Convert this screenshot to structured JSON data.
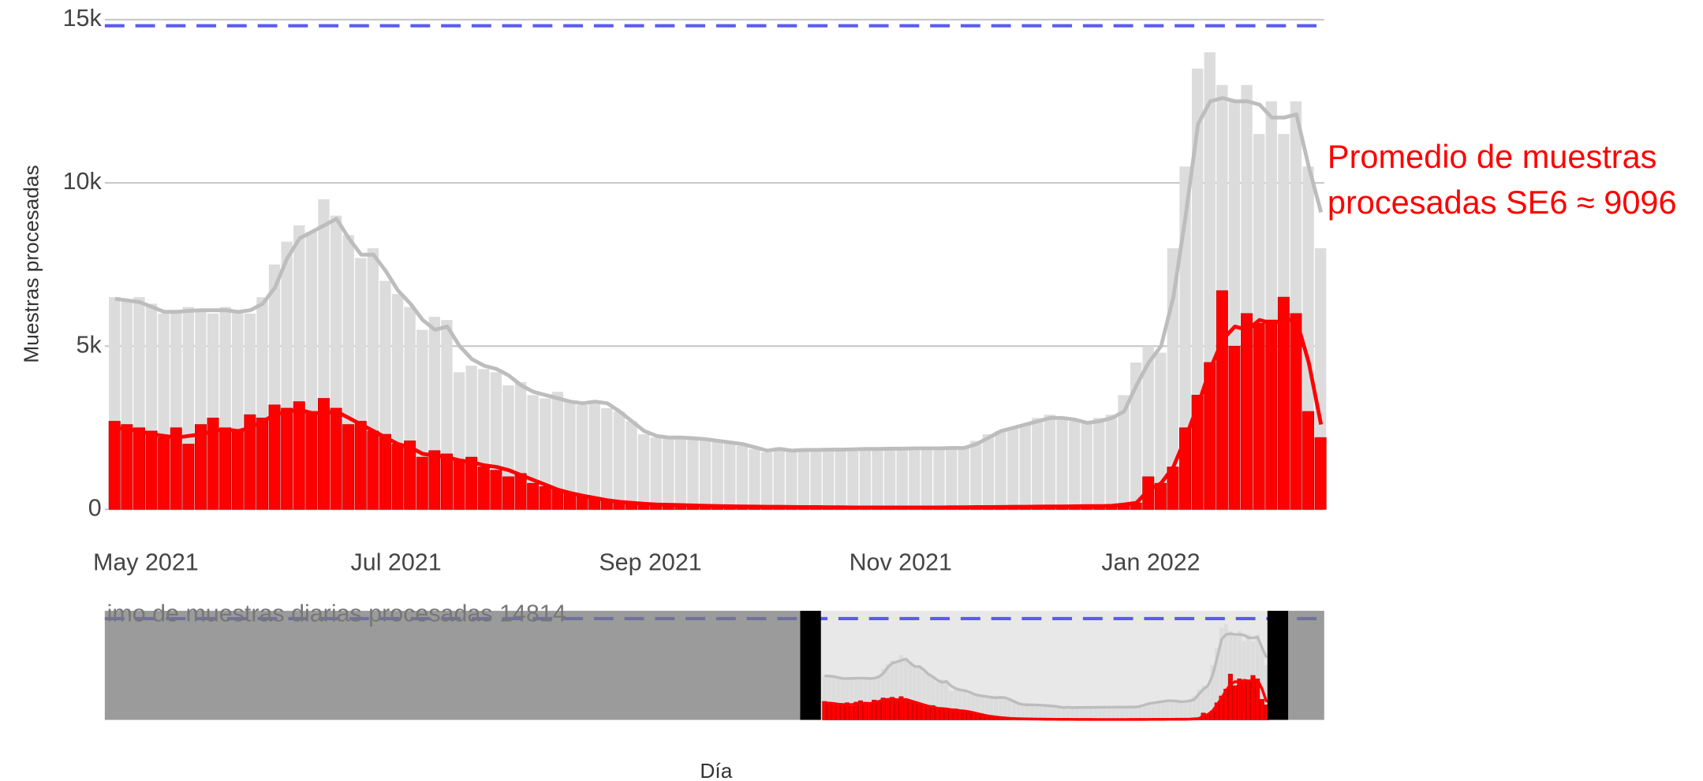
{
  "chart_data": {
    "type": "bar",
    "y_label": "Muestras procesadas",
    "x_label": "Día",
    "annotation": [
      "Promedio de muestras",
      "procesadas SE6  ≈ 9096"
    ],
    "reference_line": {
      "value": 14814,
      "label": "imo de muestras diarias procesadas 14814",
      "color": "#5b5bf0"
    },
    "xlim": [
      -10,
      287
    ],
    "xticks": [
      {
        "value": 0,
        "label": "May 2021"
      },
      {
        "value": 61,
        "label": "Jul 2021"
      },
      {
        "value": 123,
        "label": "Sep 2021"
      },
      {
        "value": 184,
        "label": "Nov 2021"
      },
      {
        "value": 245,
        "label": "Jan 2022"
      }
    ],
    "ylim": [
      0,
      15000
    ],
    "yticks": [
      {
        "value": 0,
        "label": "0"
      },
      {
        "value": 5000,
        "label": "5k"
      },
      {
        "value": 10000,
        "label": "10k"
      },
      {
        "value": 15000,
        "label": "15k"
      }
    ],
    "grid": true,
    "x": [
      -9,
      -6,
      -3,
      0,
      3,
      6,
      9,
      12,
      15,
      18,
      21,
      24,
      27,
      30,
      33,
      36,
      39,
      42,
      45,
      48,
      51,
      54,
      57,
      60,
      63,
      66,
      69,
      72,
      75,
      78,
      81,
      84,
      87,
      90,
      93,
      96,
      99,
      102,
      105,
      108,
      111,
      114,
      117,
      120,
      123,
      126,
      129,
      132,
      135,
      138,
      141,
      144,
      147,
      150,
      153,
      156,
      159,
      162,
      165,
      168,
      171,
      174,
      177,
      180,
      183,
      186,
      189,
      192,
      195,
      198,
      201,
      204,
      207,
      210,
      213,
      216,
      219,
      222,
      225,
      228,
      231,
      234,
      237,
      240,
      243,
      246,
      249,
      252,
      255,
      258,
      261,
      264,
      267,
      270,
      273,
      276,
      279,
      282,
      285
    ],
    "series": [
      {
        "type": "bar",
        "color": "#dcdcdc",
        "values": [
          6500,
          6400,
          6500,
          6300,
          6000,
          6100,
          6200,
          6100,
          6000,
          6200,
          6100,
          6000,
          6500,
          7500,
          8200,
          8700,
          8500,
          9500,
          9000,
          8400,
          7700,
          8000,
          7000,
          6600,
          6200,
          5500,
          5900,
          5800,
          4200,
          4400,
          4300,
          4200,
          3800,
          3900,
          3500,
          3400,
          3600,
          3300,
          3200,
          3300,
          3100,
          3000,
          2700,
          2300,
          2200,
          2200,
          2200,
          2150,
          2150,
          2100,
          2050,
          1950,
          1850,
          1750,
          1900,
          1800,
          1850,
          1800,
          1850,
          1800,
          1850,
          1850,
          1900,
          1850,
          1900,
          1850,
          1900,
          1850,
          1900,
          1900,
          2100,
          2300,
          2400,
          2500,
          2600,
          2800,
          2900,
          2800,
          2700,
          2700,
          2800,
          2900,
          3500,
          4500,
          5000,
          4800,
          8000,
          10500,
          13500,
          14000,
          13000,
          12500,
          13000,
          11500,
          12500,
          11500,
          12500,
          10500,
          8000
        ]
      },
      {
        "type": "bar",
        "color": "#ff0000",
        "values": [
          2700,
          2600,
          2500,
          2400,
          2200,
          2500,
          2000,
          2600,
          2800,
          2500,
          2400,
          2900,
          2800,
          3200,
          3100,
          3300,
          3000,
          3400,
          3100,
          2600,
          2700,
          2400,
          2300,
          2000,
          2100,
          1600,
          1800,
          1700,
          1500,
          1600,
          1300,
          1200,
          1000,
          1100,
          800,
          700,
          600,
          500,
          400,
          350,
          300,
          250,
          200,
          180,
          150,
          140,
          130,
          120,
          110,
          100,
          95,
          90,
          85,
          80,
          80,
          75,
          70,
          70,
          65,
          65,
          60,
          60,
          60,
          60,
          60,
          60,
          60,
          60,
          65,
          65,
          70,
          70,
          75,
          80,
          80,
          85,
          90,
          90,
          95,
          100,
          100,
          110,
          150,
          200,
          1000,
          800,
          1300,
          2500,
          3500,
          4500,
          6700,
          5000,
          6000,
          5700,
          5800,
          6500,
          6000,
          3000,
          2200
        ]
      },
      {
        "type": "line",
        "color": "#bdbdbd",
        "values": [
          6450,
          6400,
          6350,
          6200,
          6050,
          6050,
          6080,
          6100,
          6100,
          6100,
          6050,
          6100,
          6300,
          6800,
          7700,
          8300,
          8500,
          8700,
          8900,
          8300,
          7800,
          7800,
          7300,
          6700,
          6300,
          5800,
          5500,
          5600,
          5000,
          4600,
          4400,
          4300,
          4100,
          3800,
          3600,
          3500,
          3400,
          3300,
          3250,
          3300,
          3250,
          3000,
          2700,
          2400,
          2250,
          2200,
          2200,
          2180,
          2150,
          2100,
          2050,
          2000,
          1900,
          1800,
          1850,
          1800,
          1820,
          1820,
          1830,
          1830,
          1840,
          1850,
          1850,
          1860,
          1860,
          1870,
          1870,
          1870,
          1880,
          1880,
          2000,
          2200,
          2400,
          2500,
          2600,
          2700,
          2800,
          2800,
          2750,
          2650,
          2700,
          2800,
          3000,
          3800,
          4500,
          5000,
          6500,
          9000,
          11800,
          12500,
          12600,
          12500,
          12500,
          12400,
          12000,
          12000,
          12100,
          10500,
          9100
        ]
      },
      {
        "type": "line",
        "color": "#ff0000",
        "values": [
          2500,
          2450,
          2400,
          2300,
          2250,
          2200,
          2250,
          2300,
          2400,
          2450,
          2400,
          2500,
          2700,
          2900,
          3000,
          3050,
          2950,
          2950,
          3000,
          2800,
          2600,
          2400,
          2200,
          2000,
          1900,
          1700,
          1650,
          1600,
          1500,
          1450,
          1350,
          1300,
          1200,
          1050,
          900,
          750,
          600,
          500,
          420,
          350,
          280,
          230,
          200,
          170,
          150,
          140,
          130,
          120,
          110,
          100,
          95,
          90,
          85,
          80,
          80,
          75,
          70,
          70,
          65,
          65,
          60,
          60,
          60,
          60,
          60,
          60,
          60,
          60,
          65,
          65,
          70,
          70,
          75,
          80,
          80,
          85,
          90,
          90,
          95,
          100,
          100,
          110,
          150,
          200,
          600,
          800,
          1300,
          2200,
          3200,
          4300,
          5200,
          5600,
          5500,
          5800,
          5700,
          5800,
          5800,
          4500,
          2600
        ]
      }
    ]
  }
}
